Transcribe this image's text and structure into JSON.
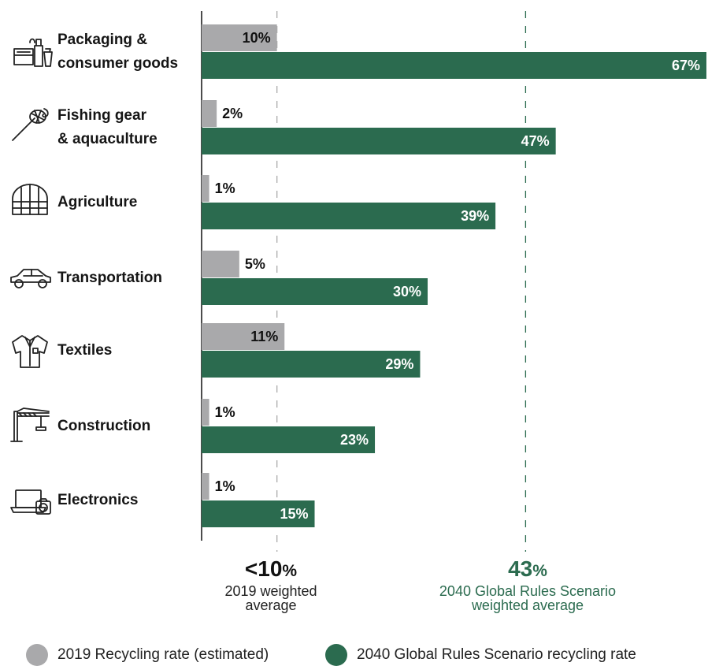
{
  "chart_data": {
    "type": "bar",
    "orientation": "horizontal",
    "categories": [
      "Packaging &\nconsumer goods",
      "Fishing gear\n& aquaculture",
      "Agriculture",
      "Transportation",
      "Textiles",
      "Construction",
      "Electronics"
    ],
    "series": [
      {
        "name": "2019 Recycling rate (estimated)",
        "color": "#a9a9ab",
        "values": [
          10,
          2,
          1,
          5,
          11,
          1,
          1
        ],
        "labels": [
          "10%",
          "2%",
          "1%",
          "5%",
          "11%",
          "1%",
          "1%"
        ]
      },
      {
        "name": "2040 Global Rules Scenario recycling rate",
        "color": "#2b6b4f",
        "values": [
          67,
          47,
          39,
          30,
          29,
          23,
          15
        ],
        "labels": [
          "67%",
          "47%",
          "39%",
          "30%",
          "29%",
          "23%",
          "15%"
        ]
      }
    ],
    "xlim": [
      0,
      67
    ],
    "reference_lines": [
      {
        "value": 10,
        "big": "<10",
        "unit": "%",
        "label": "2019 weighted\naverage",
        "color": "#111111",
        "line_color": "#aaaaaa"
      },
      {
        "value": 43,
        "big": "43",
        "unit": "%",
        "label": "2040 Global Rules Scenario\nweighted average",
        "color": "#2b6b4f",
        "line_color": "#2b6b4f"
      }
    ],
    "legend_position": "bottom",
    "icons": [
      "packaging-icon",
      "fishing-gear-icon",
      "greenhouse-icon",
      "car-icon",
      "jacket-icon",
      "crane-icon",
      "laptop-camera-icon"
    ]
  }
}
